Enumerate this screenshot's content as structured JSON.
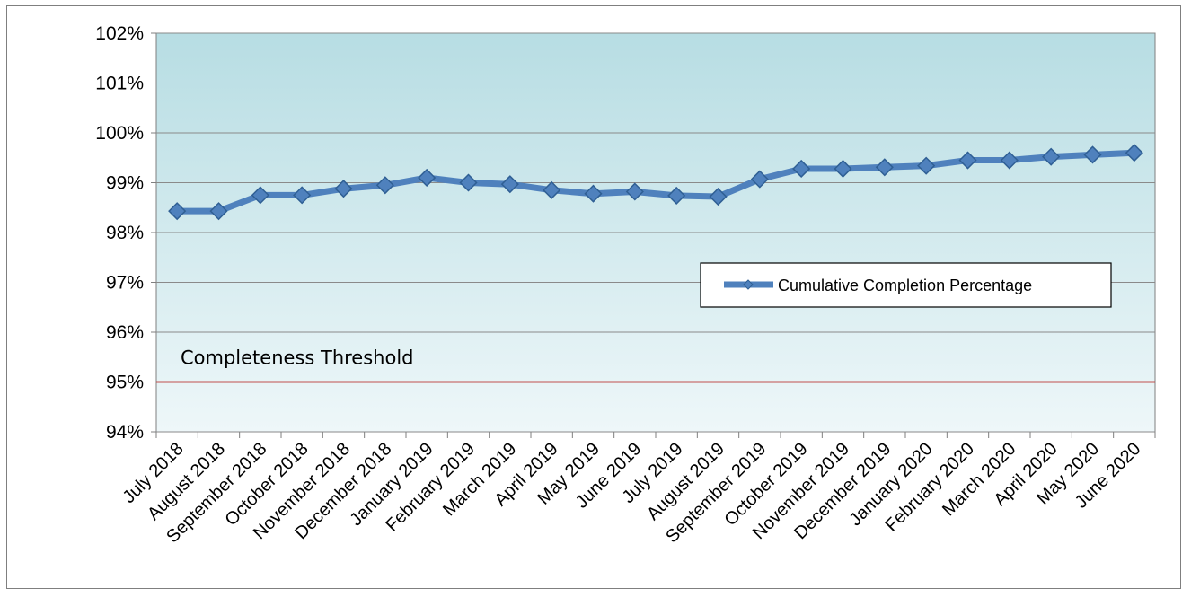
{
  "chart_data": {
    "type": "line",
    "title": "",
    "xlabel": "",
    "ylabel": "",
    "categories": [
      "July 2018",
      "August 2018",
      "September 2018",
      "October 2018",
      "November 2018",
      "December 2018",
      "January 2019",
      "February 2019",
      "March 2019",
      "April 2019",
      "May 2019",
      "June 2019",
      "July 2019",
      "August 2019",
      "September 2019",
      "October 2019",
      "November 2019",
      "December 2019",
      "January 2020",
      "February 2020",
      "March 2020",
      "April 2020",
      "May 2020",
      "June 2020"
    ],
    "series": [
      {
        "name": "Cumulative Completion Percentage",
        "color": "#4f81bd",
        "values": [
          98.43,
          98.43,
          98.75,
          98.75,
          98.88,
          98.95,
          99.1,
          99.0,
          98.97,
          98.85,
          98.78,
          98.82,
          98.74,
          98.72,
          99.07,
          99.28,
          99.28,
          99.31,
          99.34,
          99.45,
          99.45,
          99.52,
          99.56,
          99.6
        ]
      }
    ],
    "ylim": [
      94,
      102
    ],
    "yticks": [
      94,
      95,
      96,
      97,
      98,
      99,
      100,
      101,
      102
    ],
    "ytick_labels": [
      "94%",
      "95%",
      "96%",
      "97%",
      "98%",
      "99%",
      "100%",
      "101%",
      "102%"
    ],
    "grid": true,
    "legend": "right",
    "threshold": {
      "value": 95,
      "label": "Completeness Threshold",
      "color": "#c0504d"
    }
  }
}
